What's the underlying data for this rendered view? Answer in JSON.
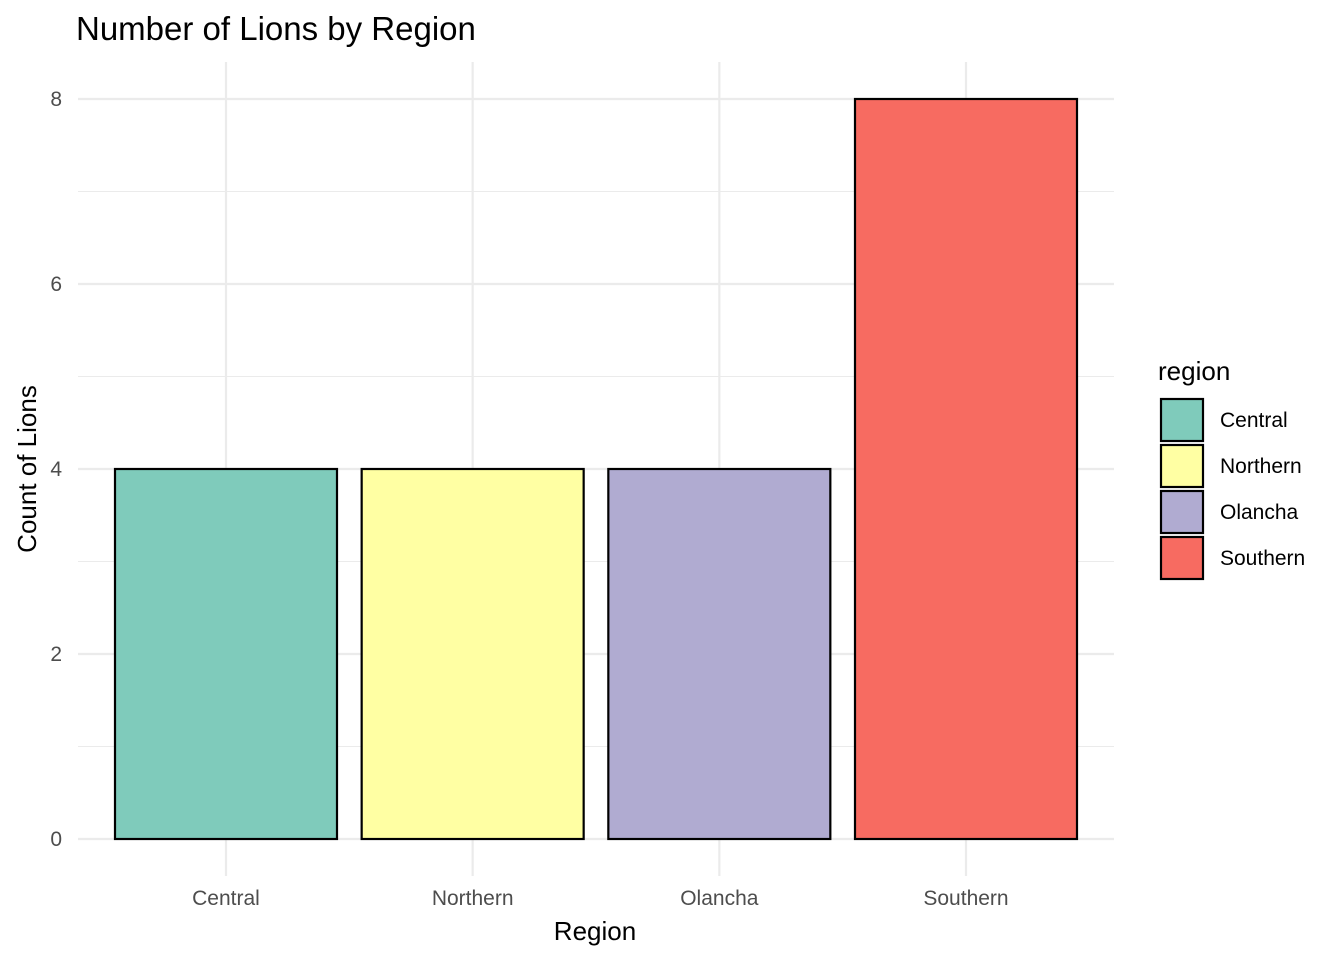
{
  "chart_data": {
    "type": "bar",
    "title": "Number of Lions by Region",
    "xlabel": "Region",
    "ylabel": "Count of Lions",
    "categories": [
      "Central",
      "Northern",
      "Olancha",
      "Southern"
    ],
    "values": [
      4,
      4,
      4,
      8
    ],
    "colors": [
      "#7fcbbb",
      "#ffffa3",
      "#b0abd1",
      "#f76b61"
    ],
    "bar_outline_color": "#000000",
    "ylim": [
      0,
      8
    ],
    "y_ticks": [
      0,
      2,
      4,
      6,
      8
    ],
    "y_tick_labels": [
      "0",
      "2",
      "4",
      "6",
      "8"
    ],
    "grid": true,
    "grid_color": "#ebebeb",
    "legend": {
      "title": "region",
      "position": "right",
      "entries": [
        "Central",
        "Northern",
        "Olancha",
        "Southern"
      ]
    }
  }
}
